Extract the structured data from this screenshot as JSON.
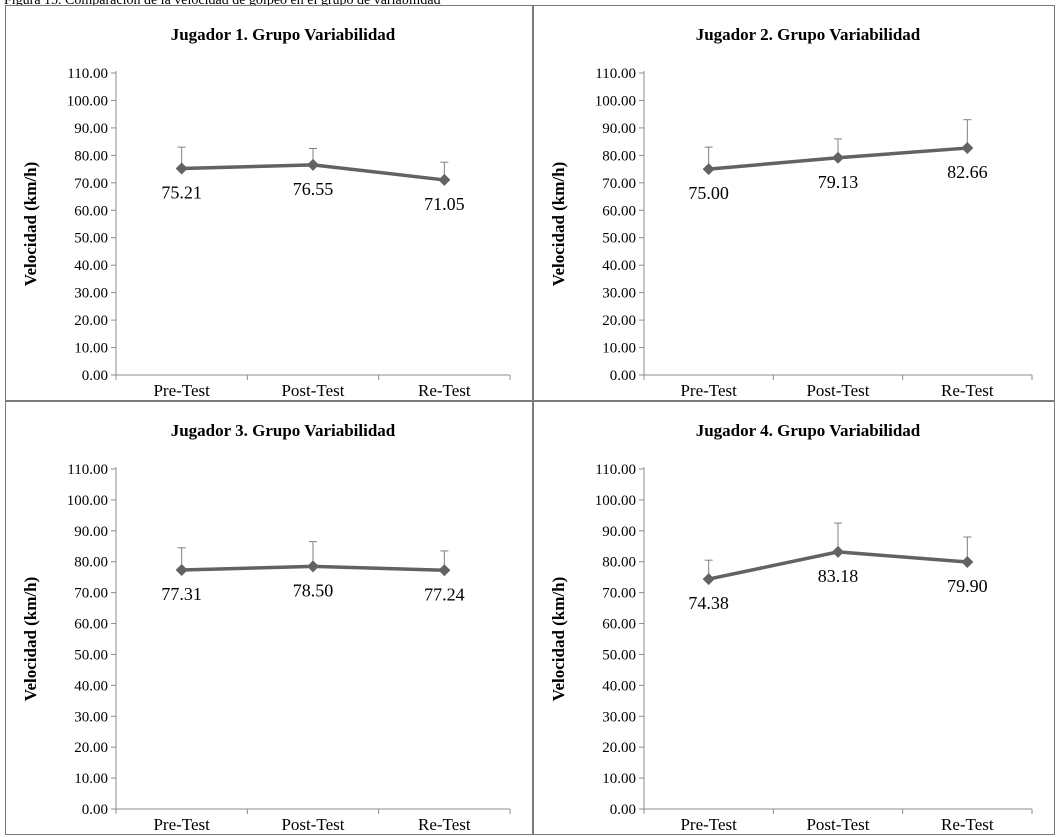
{
  "figure_caption": "Figura 15. Comparación de la velocidad de golpeo en el grupo de variabilidad",
  "chart_data": [
    {
      "type": "line",
      "title": "Jugador 1. Grupo Variabilidad",
      "ylabel": "Velocidad (km/h)",
      "xlabel": "",
      "categories": [
        "Pre-Test",
        "Post-Test",
        "Re-Test"
      ],
      "values": [
        75.21,
        76.55,
        71.05
      ],
      "value_labels": [
        "75.21",
        "76.55",
        "71.05"
      ],
      "error_upper": [
        83.0,
        82.5,
        77.5
      ],
      "ylim": [
        0,
        110
      ],
      "yticks": [
        "0.00",
        "10.00",
        "20.00",
        "30.00",
        "40.00",
        "50.00",
        "60.00",
        "70.00",
        "80.00",
        "90.00",
        "100.00",
        "110.00"
      ],
      "grid": false,
      "legend": "none",
      "color": "#626262"
    },
    {
      "type": "line",
      "title": "Jugador 2. Grupo Variabilidad",
      "ylabel": "Velocidad (km/h)",
      "xlabel": "",
      "categories": [
        "Pre-Test",
        "Post-Test",
        "Re-Test"
      ],
      "values": [
        75.0,
        79.13,
        82.66
      ],
      "value_labels": [
        "75.00",
        "79.13",
        "82.66"
      ],
      "error_upper": [
        83.0,
        86.0,
        93.0
      ],
      "ylim": [
        0,
        110
      ],
      "yticks": [
        "0.00",
        "10.00",
        "20.00",
        "30.00",
        "40.00",
        "50.00",
        "60.00",
        "70.00",
        "80.00",
        "90.00",
        "100.00",
        "110.00"
      ],
      "grid": false,
      "legend": "none",
      "color": "#626262"
    },
    {
      "type": "line",
      "title": "Jugador 3. Grupo Variabilidad",
      "ylabel": "Velocidad (km/h)",
      "xlabel": "",
      "categories": [
        "Pre-Test",
        "Post-Test",
        "Re-Test"
      ],
      "values": [
        77.31,
        78.5,
        77.24
      ],
      "value_labels": [
        "77.31",
        "78.50",
        "77.24"
      ],
      "error_upper": [
        84.5,
        86.5,
        83.5
      ],
      "ylim": [
        0,
        110
      ],
      "yticks": [
        "0.00",
        "10.00",
        "20.00",
        "30.00",
        "40.00",
        "50.00",
        "60.00",
        "70.00",
        "80.00",
        "90.00",
        "100.00",
        "110.00"
      ],
      "grid": false,
      "legend": "none",
      "color": "#626262"
    },
    {
      "type": "line",
      "title": "Jugador 4. Grupo Variabilidad",
      "ylabel": "Velocidad (km/h)",
      "xlabel": "",
      "categories": [
        "Pre-Test",
        "Post-Test",
        "Re-Test"
      ],
      "values": [
        74.38,
        83.18,
        79.9
      ],
      "value_labels": [
        "74.38",
        "83.18",
        "79.90"
      ],
      "error_upper": [
        80.5,
        92.5,
        88.0
      ],
      "ylim": [
        0,
        110
      ],
      "yticks": [
        "0.00",
        "10.00",
        "20.00",
        "30.00",
        "40.00",
        "50.00",
        "60.00",
        "70.00",
        "80.00",
        "90.00",
        "100.00",
        "110.00"
      ],
      "grid": false,
      "legend": "none",
      "color": "#626262"
    }
  ]
}
